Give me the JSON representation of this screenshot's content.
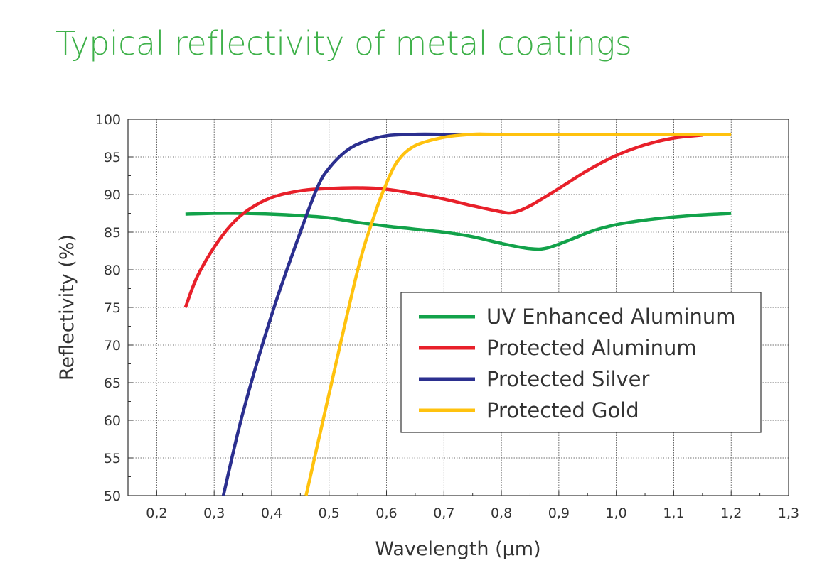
{
  "title": "Typical reflectivity of metal coatings",
  "colors": {
    "title": "#3fb14a",
    "uv_enhanced_aluminum": "#12a24a",
    "protected_aluminum": "#e8202a",
    "protected_silver": "#2b2f8f",
    "protected_gold": "#ffc20e"
  },
  "chart_data": {
    "type": "line",
    "xlabel": "Wavelength (µm)",
    "ylabel": "Reflectivity (%)",
    "xlim": [
      0.15,
      1.3
    ],
    "ylim": [
      50,
      100
    ],
    "x_ticks": [
      "0,2",
      "0,3",
      "0,4",
      "0,5",
      "0,6",
      "0,7",
      "0,8",
      "0,9",
      "1,0",
      "1,1",
      "1,2",
      "1,3"
    ],
    "y_ticks": [
      "50",
      "55",
      "60",
      "65",
      "70",
      "75",
      "80",
      "85",
      "90",
      "95",
      "100"
    ],
    "grid": true,
    "legend_position": "lower-right",
    "series": [
      {
        "name": "UV Enhanced Aluminum",
        "color": "#12a24a",
        "points": [
          [
            0.25,
            87.4
          ],
          [
            0.3,
            87.5
          ],
          [
            0.35,
            87.5
          ],
          [
            0.4,
            87.4
          ],
          [
            0.45,
            87.2
          ],
          [
            0.5,
            86.9
          ],
          [
            0.55,
            86.3
          ],
          [
            0.6,
            85.8
          ],
          [
            0.65,
            85.4
          ],
          [
            0.7,
            85.0
          ],
          [
            0.75,
            84.4
          ],
          [
            0.8,
            83.5
          ],
          [
            0.85,
            82.8
          ],
          [
            0.88,
            82.9
          ],
          [
            0.92,
            84.0
          ],
          [
            0.96,
            85.2
          ],
          [
            1.0,
            86.0
          ],
          [
            1.05,
            86.6
          ],
          [
            1.1,
            87.0
          ],
          [
            1.15,
            87.3
          ],
          [
            1.2,
            87.5
          ]
        ]
      },
      {
        "name": "Protected Aluminum",
        "color": "#e8202a",
        "points": [
          [
            0.25,
            75.0
          ],
          [
            0.27,
            79.0
          ],
          [
            0.3,
            83.0
          ],
          [
            0.33,
            86.0
          ],
          [
            0.36,
            88.0
          ],
          [
            0.4,
            89.6
          ],
          [
            0.45,
            90.5
          ],
          [
            0.5,
            90.8
          ],
          [
            0.55,
            90.9
          ],
          [
            0.6,
            90.7
          ],
          [
            0.65,
            90.1
          ],
          [
            0.7,
            89.4
          ],
          [
            0.75,
            88.5
          ],
          [
            0.8,
            87.7
          ],
          [
            0.82,
            87.6
          ],
          [
            0.85,
            88.5
          ],
          [
            0.9,
            90.8
          ],
          [
            0.95,
            93.2
          ],
          [
            1.0,
            95.2
          ],
          [
            1.05,
            96.6
          ],
          [
            1.1,
            97.5
          ],
          [
            1.15,
            97.9
          ]
        ]
      },
      {
        "name": "Protected Silver",
        "color": "#2b2f8f",
        "points": [
          [
            0.316,
            50.0
          ],
          [
            0.35,
            61.0
          ],
          [
            0.4,
            74.0
          ],
          [
            0.45,
            85.0
          ],
          [
            0.48,
            91.0
          ],
          [
            0.5,
            93.5
          ],
          [
            0.53,
            95.8
          ],
          [
            0.56,
            97.0
          ],
          [
            0.6,
            97.8
          ],
          [
            0.65,
            98.0
          ],
          [
            0.7,
            98.0
          ],
          [
            0.77,
            98.0
          ]
        ]
      },
      {
        "name": "Protected Gold",
        "color": "#ffc20e",
        "points": [
          [
            0.46,
            50.0
          ],
          [
            0.5,
            63.5
          ],
          [
            0.55,
            80.0
          ],
          [
            0.58,
            87.5
          ],
          [
            0.6,
            91.5
          ],
          [
            0.62,
            94.5
          ],
          [
            0.65,
            96.5
          ],
          [
            0.7,
            97.6
          ],
          [
            0.75,
            98.0
          ],
          [
            0.8,
            98.0
          ],
          [
            1.0,
            98.0
          ],
          [
            1.2,
            98.0
          ]
        ]
      }
    ]
  }
}
